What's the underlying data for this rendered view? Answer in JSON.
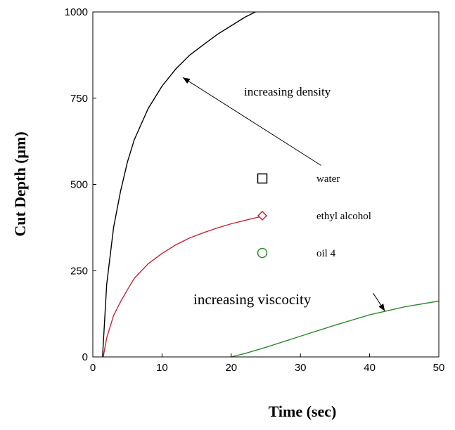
{
  "chart_data": {
    "type": "line",
    "xlabel": "Time (sec)",
    "ylabel": "Cut Depth (μm)",
    "xlim": [
      0,
      50
    ],
    "ylim": [
      0,
      1000
    ],
    "x_ticks": [
      "0",
      "10",
      "20",
      "30",
      "40",
      "50"
    ],
    "y_ticks": [
      "0",
      "250",
      "500",
      "750",
      "1000"
    ],
    "grid": false,
    "series": [
      {
        "name": "water",
        "marker": "square",
        "color": "#000000",
        "points": [
          [
            1.4,
            0
          ],
          [
            2,
            210
          ],
          [
            3,
            375
          ],
          [
            4,
            480
          ],
          [
            5,
            565
          ],
          [
            6,
            630
          ],
          [
            8,
            720
          ],
          [
            10,
            785
          ],
          [
            12,
            835
          ],
          [
            14,
            875
          ],
          [
            16,
            905
          ],
          [
            18,
            935
          ],
          [
            20,
            960
          ],
          [
            22,
            985
          ],
          [
            23.5,
            1000
          ]
        ]
      },
      {
        "name": "ethyl alcohol",
        "marker": "diamond",
        "color": "#cc2233",
        "points": [
          [
            1.5,
            0
          ],
          [
            2,
            55
          ],
          [
            3,
            120
          ],
          [
            4,
            160
          ],
          [
            5,
            195
          ],
          [
            6,
            228
          ],
          [
            8,
            270
          ],
          [
            10,
            300
          ],
          [
            12,
            325
          ],
          [
            14,
            345
          ],
          [
            16,
            360
          ],
          [
            18,
            374
          ],
          [
            20,
            386
          ],
          [
            22,
            396
          ],
          [
            24.5,
            408
          ]
        ]
      },
      {
        "name": "oil 4",
        "marker": "circle",
        "color": "#2a8a2a",
        "points": [
          [
            20,
            0
          ],
          [
            22,
            10
          ],
          [
            25,
            28
          ],
          [
            30,
            60
          ],
          [
            35,
            92
          ],
          [
            40,
            122
          ],
          [
            45,
            145
          ],
          [
            50,
            162
          ]
        ]
      }
    ],
    "legend": [
      {
        "label": "water",
        "marker": "square",
        "color": "#000000"
      },
      {
        "label": "ethyl alcohol",
        "marker": "diamond",
        "color": "#cc2233"
      },
      {
        "label": "oil 4",
        "marker": "circle",
        "color": "#2a8a2a"
      }
    ],
    "annotations": [
      {
        "text": "increasing density",
        "arrow_from": [
          33,
          555
        ],
        "arrow_to": [
          13,
          810
        ]
      },
      {
        "text": "increasing viscocity",
        "arrow_from": [
          40.5,
          185
        ],
        "arrow_to": [
          42.2,
          133
        ]
      }
    ]
  }
}
